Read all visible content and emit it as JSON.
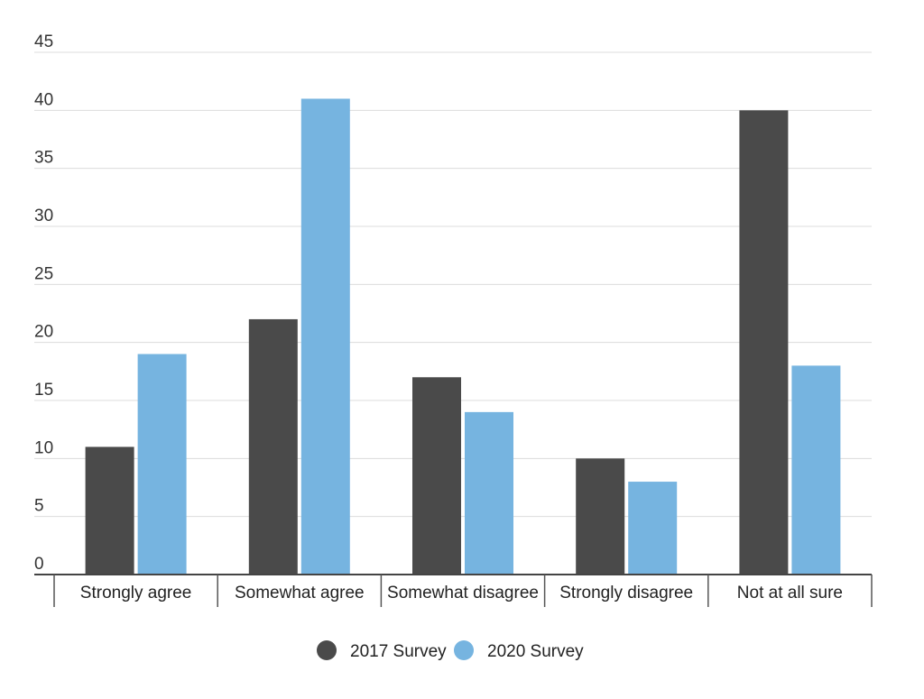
{
  "chart_data": {
    "type": "bar",
    "title": "",
    "xlabel": "",
    "ylabel": "",
    "categories": [
      "Strongly agree",
      "Somewhat agree",
      "Somewhat disagree",
      "Strongly disagree",
      "Not at all sure"
    ],
    "series": [
      {
        "name": "2017 Survey",
        "color": "#4a4a4a",
        "values": [
          11,
          22,
          17,
          10,
          40
        ]
      },
      {
        "name": "2020 Survey",
        "color": "#76b4e0",
        "values": [
          19,
          41,
          14,
          8,
          18
        ]
      }
    ],
    "ylim": [
      0,
      45
    ],
    "yticks": [
      0,
      5,
      10,
      15,
      20,
      25,
      30,
      35,
      40,
      45
    ],
    "grid": true,
    "legend_position": "bottom-center"
  }
}
